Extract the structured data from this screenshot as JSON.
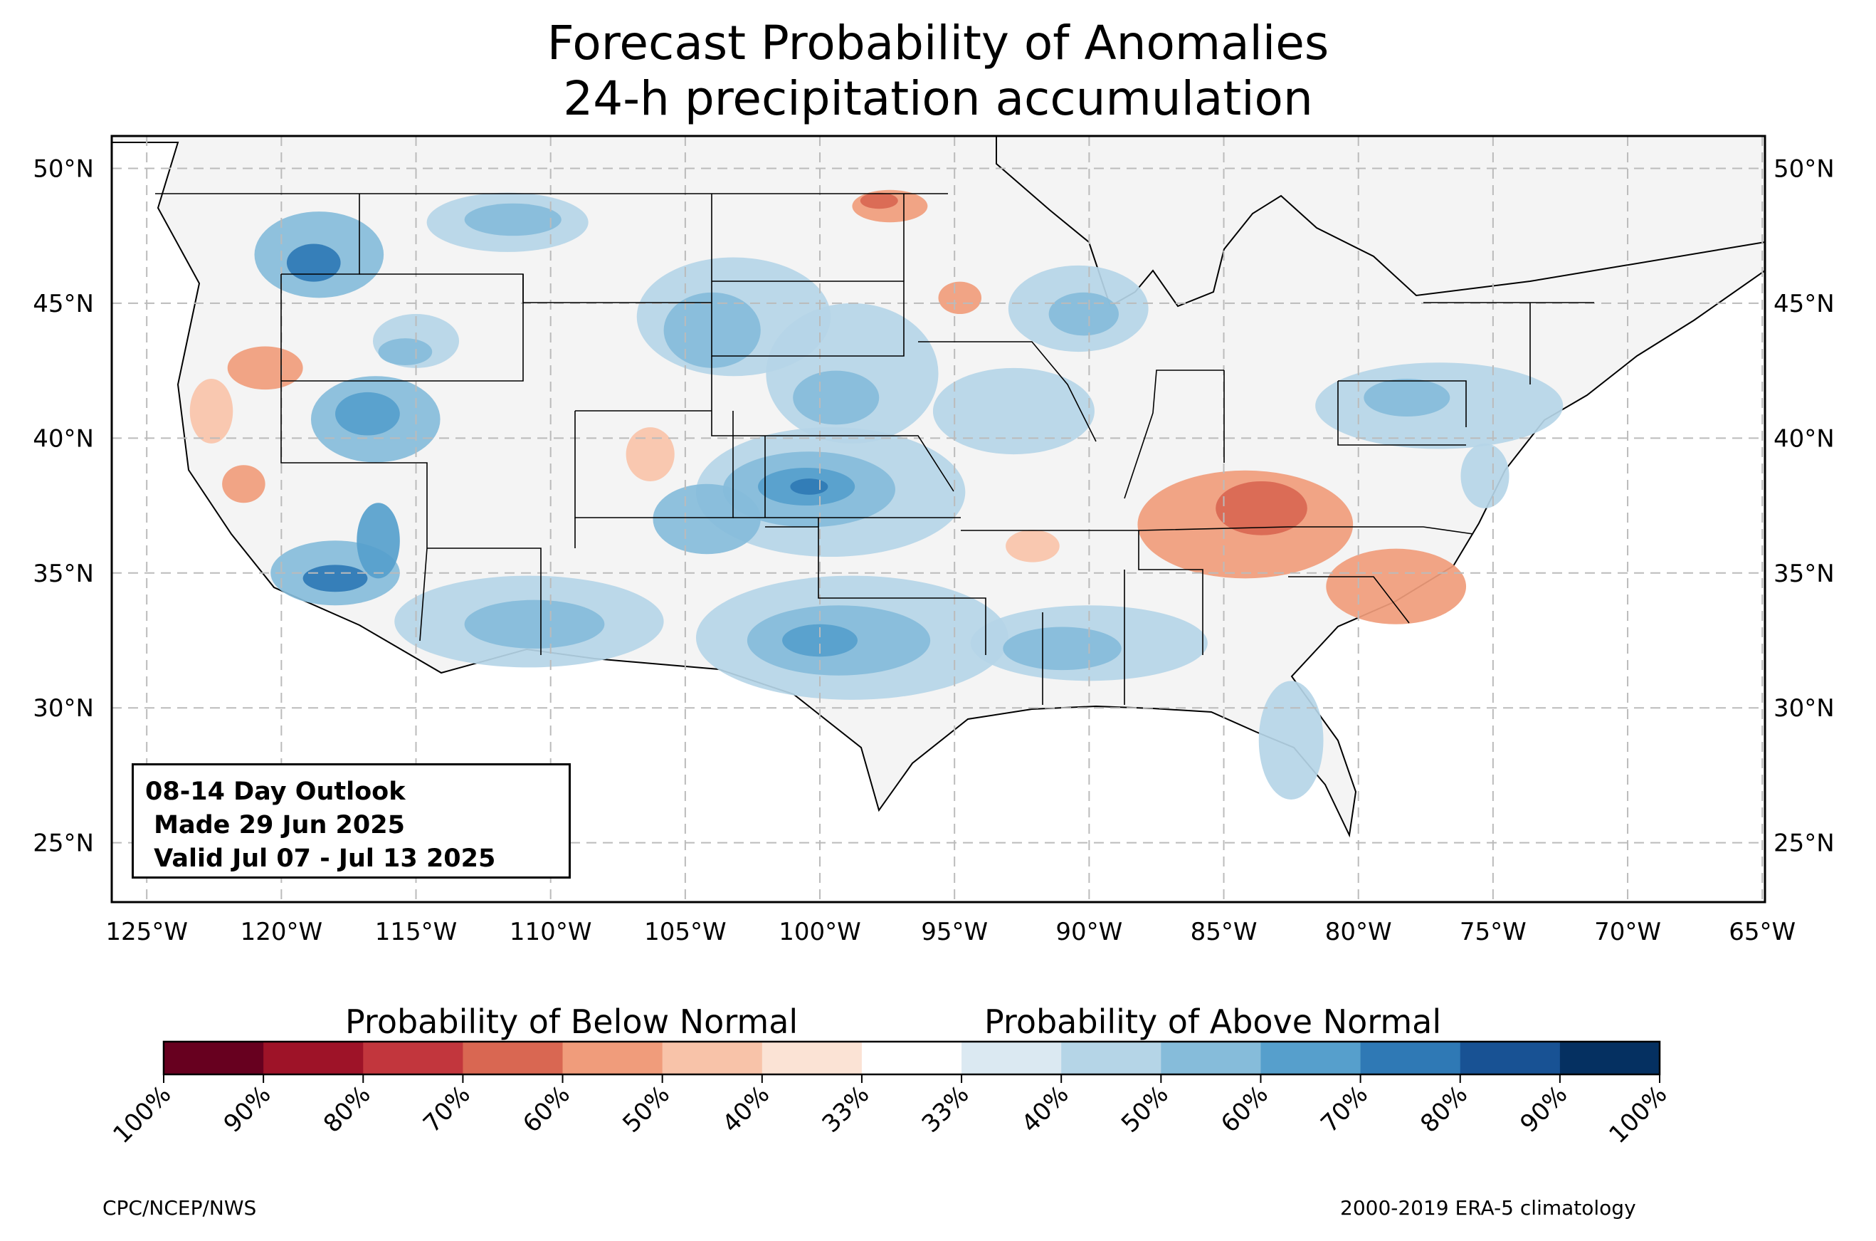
{
  "title": {
    "line1": "Forecast Probability of Anomalies",
    "line2": "24-h precipitation accumulation"
  },
  "map": {
    "extent_lon": [
      -126.3,
      -64.9
    ],
    "extent_lat": [
      22.8,
      51.2
    ],
    "lat_labels": [
      "50°N",
      "45°N",
      "40°N",
      "35°N",
      "30°N",
      "25°N"
    ],
    "lat_values": [
      50,
      45,
      40,
      35,
      30,
      25
    ],
    "lon_labels": [
      "125°W",
      "120°W",
      "115°W",
      "110°W",
      "105°W",
      "100°W",
      "95°W",
      "90°W",
      "85°W",
      "80°W",
      "75°W",
      "70°W",
      "65°W"
    ],
    "lon_values": [
      -125,
      -120,
      -115,
      -110,
      -105,
      -100,
      -95,
      -90,
      -85,
      -80,
      -75,
      -70,
      -65
    ],
    "land_color": "#f4f4f4",
    "gridlines": true
  },
  "outlook_box": {
    "line1": "08-14 Day Outlook",
    "line2": " Made 29 Jun 2025",
    "line3": " Valid Jul 07 - Jul 13 2025"
  },
  "colorbar": {
    "below_title": "Probability of Below Normal",
    "above_title": "Probability of Above Normal",
    "tick_labels": [
      "100%",
      "90%",
      "80%",
      "70%",
      "60%",
      "50%",
      "40%",
      "33%",
      "33%",
      "40%",
      "50%",
      "60%",
      "70%",
      "80%",
      "90%",
      "100%"
    ],
    "colors": [
      "#67001f",
      "#9e1328",
      "#c2363d",
      "#d96752",
      "#f09c7b",
      "#f8c3a9",
      "#fbe3d5",
      "#ffffff",
      "#dbe9f2",
      "#b5d5e7",
      "#86bcda",
      "#569fcc",
      "#2f79b5",
      "#185294",
      "#053061"
    ]
  },
  "anomalies": [
    {
      "kind": "above",
      "level": 2,
      "lon": -118.6,
      "lat": 46.8,
      "rx": 2.4,
      "ry": 1.6
    },
    {
      "kind": "above",
      "level": 4,
      "lon": -118.8,
      "lat": 46.5,
      "rx": 1.0,
      "ry": 0.7
    },
    {
      "kind": "above",
      "level": 1,
      "lon": -111.6,
      "lat": 48.0,
      "rx": 3.0,
      "ry": 1.1
    },
    {
      "kind": "above",
      "level": 2,
      "lon": -111.4,
      "lat": 48.1,
      "rx": 1.8,
      "ry": 0.6
    },
    {
      "kind": "above",
      "level": 1,
      "lon": -115.0,
      "lat": 43.6,
      "rx": 1.6,
      "ry": 1.0
    },
    {
      "kind": "above",
      "level": 2,
      "lon": -115.4,
      "lat": 43.2,
      "rx": 1.0,
      "ry": 0.5
    },
    {
      "kind": "above",
      "level": 2,
      "lon": -116.5,
      "lat": 40.7,
      "rx": 2.4,
      "ry": 1.6
    },
    {
      "kind": "above",
      "level": 3,
      "lon": -116.8,
      "lat": 40.9,
      "rx": 1.2,
      "ry": 0.8
    },
    {
      "kind": "above",
      "level": 1,
      "lon": -103.2,
      "lat": 44.5,
      "rx": 3.6,
      "ry": 2.2
    },
    {
      "kind": "above",
      "level": 2,
      "lon": -104.0,
      "lat": 44.0,
      "rx": 1.8,
      "ry": 1.4
    },
    {
      "kind": "above",
      "level": 1,
      "lon": -98.8,
      "lat": 42.4,
      "rx": 3.2,
      "ry": 2.6
    },
    {
      "kind": "above",
      "level": 2,
      "lon": -99.4,
      "lat": 41.5,
      "rx": 1.6,
      "ry": 1.0
    },
    {
      "kind": "above",
      "level": 1,
      "lon": -99.6,
      "lat": 38.0,
      "rx": 5.0,
      "ry": 2.4
    },
    {
      "kind": "above",
      "level": 2,
      "lon": -100.4,
      "lat": 38.1,
      "rx": 3.2,
      "ry": 1.4
    },
    {
      "kind": "above",
      "level": 3,
      "lon": -100.5,
      "lat": 38.2,
      "rx": 1.8,
      "ry": 0.7
    },
    {
      "kind": "above",
      "level": 4,
      "lon": -100.4,
      "lat": 38.2,
      "rx": 0.7,
      "ry": 0.3
    },
    {
      "kind": "above",
      "level": 2,
      "lon": -104.2,
      "lat": 37.0,
      "rx": 2.0,
      "ry": 1.3
    },
    {
      "kind": "above",
      "level": 1,
      "lon": -98.8,
      "lat": 32.6,
      "rx": 5.8,
      "ry": 2.3
    },
    {
      "kind": "above",
      "level": 2,
      "lon": -99.3,
      "lat": 32.5,
      "rx": 3.4,
      "ry": 1.3
    },
    {
      "kind": "above",
      "level": 3,
      "lon": -100.0,
      "lat": 32.5,
      "rx": 1.4,
      "ry": 0.6
    },
    {
      "kind": "above",
      "level": 1,
      "lon": -110.8,
      "lat": 33.2,
      "rx": 5.0,
      "ry": 1.7
    },
    {
      "kind": "above",
      "level": 2,
      "lon": -110.6,
      "lat": 33.1,
      "rx": 2.6,
      "ry": 0.9
    },
    {
      "kind": "above",
      "level": 2,
      "lon": -118.0,
      "lat": 35.0,
      "rx": 2.4,
      "ry": 1.2
    },
    {
      "kind": "above",
      "level": 4,
      "lon": -118.0,
      "lat": 34.8,
      "rx": 1.2,
      "ry": 0.5
    },
    {
      "kind": "above",
      "level": 3,
      "lon": -116.4,
      "lat": 36.2,
      "rx": 0.8,
      "ry": 1.4
    },
    {
      "kind": "above",
      "level": 1,
      "lon": -90.4,
      "lat": 44.8,
      "rx": 2.6,
      "ry": 1.6
    },
    {
      "kind": "above",
      "level": 2,
      "lon": -90.2,
      "lat": 44.6,
      "rx": 1.3,
      "ry": 0.8
    },
    {
      "kind": "above",
      "level": 1,
      "lon": -90.0,
      "lat": 32.4,
      "rx": 4.4,
      "ry": 1.4
    },
    {
      "kind": "above",
      "level": 2,
      "lon": -91.0,
      "lat": 32.2,
      "rx": 2.2,
      "ry": 0.8
    },
    {
      "kind": "above",
      "level": 1,
      "lon": -82.5,
      "lat": 28.8,
      "rx": 1.2,
      "ry": 2.2
    },
    {
      "kind": "above",
      "level": 1,
      "lon": -77.0,
      "lat": 41.2,
      "rx": 4.6,
      "ry": 1.6
    },
    {
      "kind": "above",
      "level": 2,
      "lon": -78.2,
      "lat": 41.5,
      "rx": 1.6,
      "ry": 0.7
    },
    {
      "kind": "above",
      "level": 1,
      "lon": -75.3,
      "lat": 38.6,
      "rx": 0.9,
      "ry": 1.2
    },
    {
      "kind": "above",
      "level": 1,
      "lon": -92.8,
      "lat": 41.0,
      "rx": 3.0,
      "ry": 1.6
    },
    {
      "kind": "below",
      "level": 2,
      "lon": -84.2,
      "lat": 36.8,
      "rx": 4.0,
      "ry": 2.0
    },
    {
      "kind": "below",
      "level": 3,
      "lon": -83.6,
      "lat": 37.4,
      "rx": 1.7,
      "ry": 1.0
    },
    {
      "kind": "below",
      "level": 2,
      "lon": -78.6,
      "lat": 34.5,
      "rx": 2.6,
      "ry": 1.4
    },
    {
      "kind": "below",
      "level": 2,
      "lon": -97.4,
      "lat": 48.6,
      "rx": 1.4,
      "ry": 0.6
    },
    {
      "kind": "below",
      "level": 3,
      "lon": -97.8,
      "lat": 48.8,
      "rx": 0.7,
      "ry": 0.3
    },
    {
      "kind": "below",
      "level": 2,
      "lon": -120.6,
      "lat": 42.6,
      "rx": 1.4,
      "ry": 0.8
    },
    {
      "kind": "below",
      "level": 2,
      "lon": -121.4,
      "lat": 38.3,
      "rx": 0.8,
      "ry": 0.7
    },
    {
      "kind": "below",
      "level": 2,
      "lon": -94.8,
      "lat": 45.2,
      "rx": 0.8,
      "ry": 0.6
    },
    {
      "kind": "below",
      "level": 1,
      "lon": -92.1,
      "lat": 36.0,
      "rx": 1.0,
      "ry": 0.6
    },
    {
      "kind": "below",
      "level": 1,
      "lon": -106.3,
      "lat": 39.4,
      "rx": 0.9,
      "ry": 1.0
    },
    {
      "kind": "below",
      "level": 1,
      "lon": -122.6,
      "lat": 41.0,
      "rx": 0.8,
      "ry": 1.2
    }
  ]
}
